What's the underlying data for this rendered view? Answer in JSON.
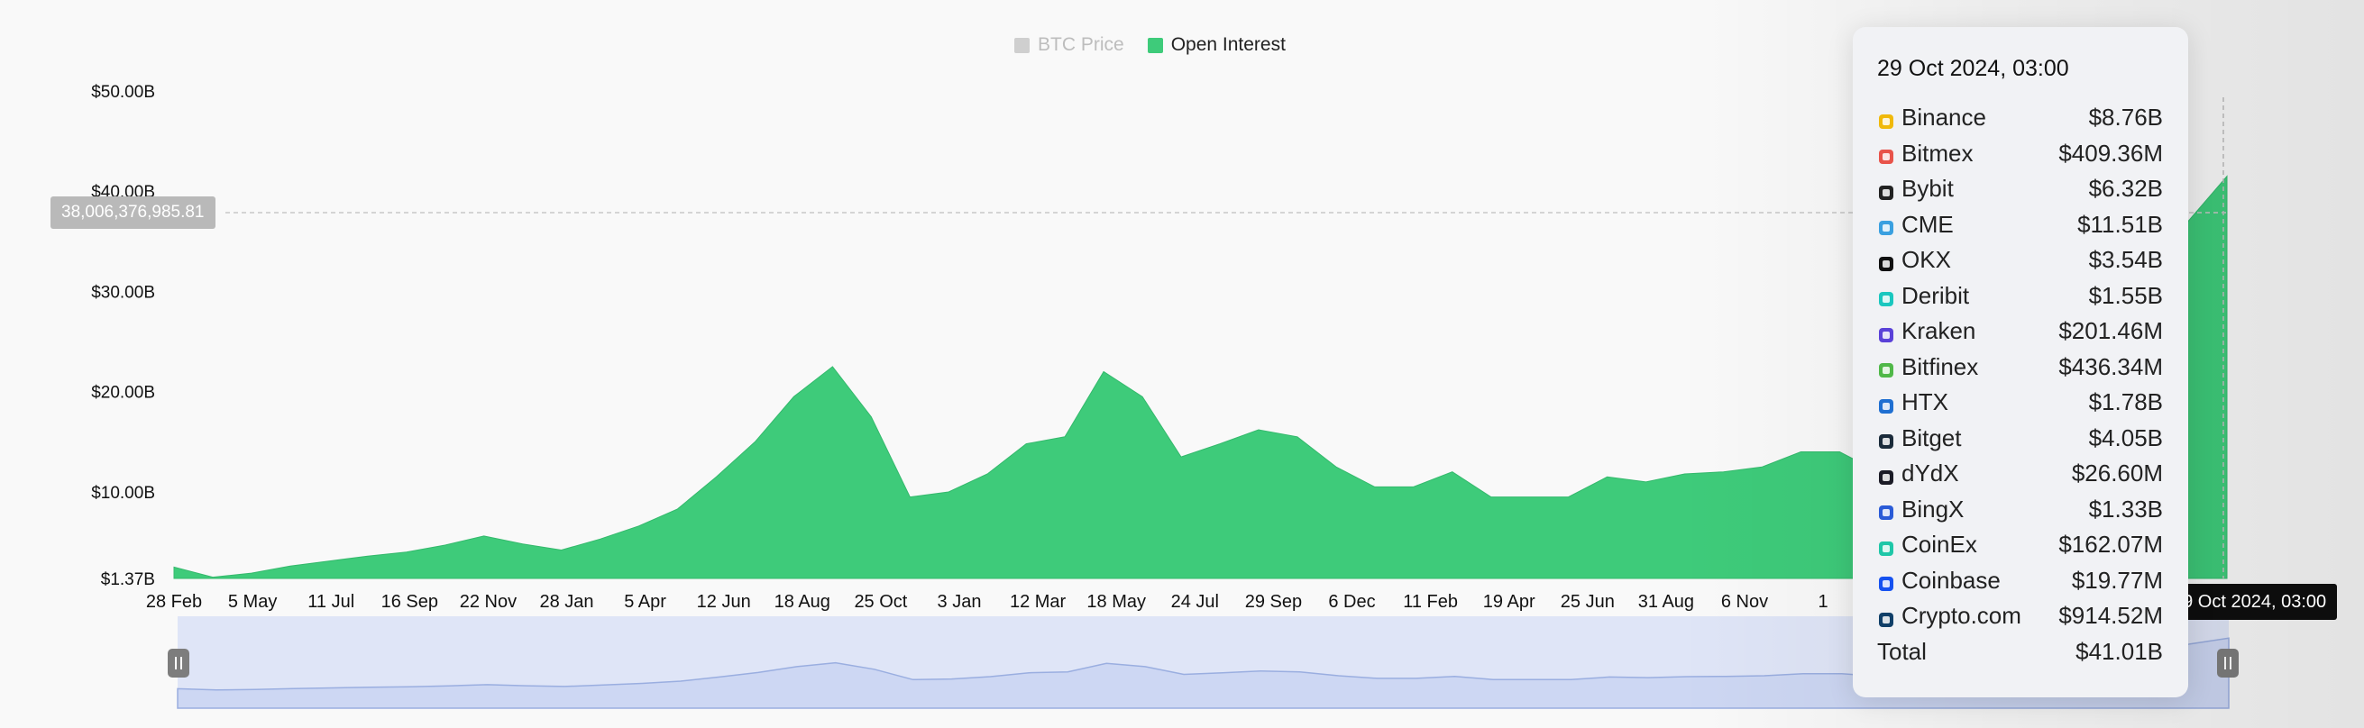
{
  "legend": {
    "items": [
      {
        "label": "BTC Price",
        "color": "#cfcfcf",
        "active": false
      },
      {
        "label": "Open Interest",
        "color": "#3ecb7a",
        "active": true
      }
    ]
  },
  "crosshair": {
    "y_value_label": "38,006,376,985.81",
    "time_label": "29 Oct 2024, 03:00"
  },
  "tooltip": {
    "title": "29 Oct 2024, 03:00",
    "rows": [
      {
        "name": "Binance",
        "value": "$8.76B",
        "icon": "binance-icon",
        "color": "#f0b90b"
      },
      {
        "name": "Bitmex",
        "value": "$409.36M",
        "icon": "bitmex-icon",
        "color": "#e8534a"
      },
      {
        "name": "Bybit",
        "value": "$6.32B",
        "icon": "bybit-icon",
        "color": "#222222"
      },
      {
        "name": "CME",
        "value": "$11.51B",
        "icon": "cme-icon",
        "color": "#3aa0e0"
      },
      {
        "name": "OKX",
        "value": "$3.54B",
        "icon": "okx-icon",
        "color": "#111111"
      },
      {
        "name": "Deribit",
        "value": "$1.55B",
        "icon": "deribit-icon",
        "color": "#1ac7bf"
      },
      {
        "name": "Kraken",
        "value": "$201.46M",
        "icon": "kraken-icon",
        "color": "#5a41d8"
      },
      {
        "name": "Bitfinex",
        "value": "$436.34M",
        "icon": "bitfinex-icon",
        "color": "#50b848"
      },
      {
        "name": "HTX",
        "value": "$1.78B",
        "icon": "htx-icon",
        "color": "#1f6fd1"
      },
      {
        "name": "Bitget",
        "value": "$4.05B",
        "icon": "bitget-icon",
        "color": "#1b2b3a"
      },
      {
        "name": "dYdX",
        "value": "$26.60M",
        "icon": "dydx-icon",
        "color": "#1b1b26"
      },
      {
        "name": "BingX",
        "value": "$1.33B",
        "icon": "bingx-icon",
        "color": "#2a5bd7"
      },
      {
        "name": "CoinEx",
        "value": "$162.07M",
        "icon": "coinex-icon",
        "color": "#1fc7a8"
      },
      {
        "name": "Coinbase",
        "value": "$19.77M",
        "icon": "coinbase-icon",
        "color": "#1652f0"
      },
      {
        "name": "Crypto.com",
        "value": "$914.52M",
        "icon": "cryptocom-icon",
        "color": "#103f68"
      }
    ],
    "total_label": "Total",
    "total_value": "$41.01B"
  },
  "chart_data": {
    "type": "area",
    "title": "",
    "series": [
      {
        "name": "Open Interest",
        "color": "#3ecb7a",
        "values_billion": [
          2.5,
          1.5,
          1.9,
          2.6,
          3.1,
          3.6,
          4.0,
          4.7,
          5.6,
          4.8,
          4.2,
          5.3,
          6.6,
          8.3,
          11.5,
          15.0,
          19.5,
          22.5,
          17.5,
          9.5,
          10.0,
          11.8,
          14.8,
          15.5,
          22.0,
          19.5,
          13.5,
          14.8,
          16.2,
          15.5,
          12.5,
          10.5,
          10.5,
          12.0,
          9.5,
          9.5,
          9.5,
          11.5,
          11.0,
          11.8,
          12.0,
          12.5,
          14.0,
          14.0,
          12.0,
          12.5,
          14.5,
          18.0,
          20.5,
          22.0,
          28.0,
          30.5,
          37.0,
          41.5
        ]
      }
    ],
    "x_tick_labels": [
      "28 Feb",
      "5 May",
      "11 Jul",
      "16 Sep",
      "22 Nov",
      "28 Jan",
      "5 Apr",
      "12 Jun",
      "18 Aug",
      "25 Oct",
      "3 Jan",
      "12 Mar",
      "18 May",
      "24 Jul",
      "29 Sep",
      "6 Dec",
      "11 Feb",
      "19 Apr",
      "25 Jun",
      "31 Aug",
      "6 Nov",
      "1"
    ],
    "y_tick_labels": [
      "$1.37B",
      "$10.00B",
      "$20.00B",
      "$30.00B",
      "$40.00B",
      "$50.00B"
    ],
    "y_tick_values_billion": [
      1.37,
      10,
      20,
      30,
      40,
      50
    ],
    "ylim_billion": [
      1.37,
      50
    ],
    "ylabel": "",
    "grid": false,
    "legend_position": "top-center",
    "navigator": true
  }
}
